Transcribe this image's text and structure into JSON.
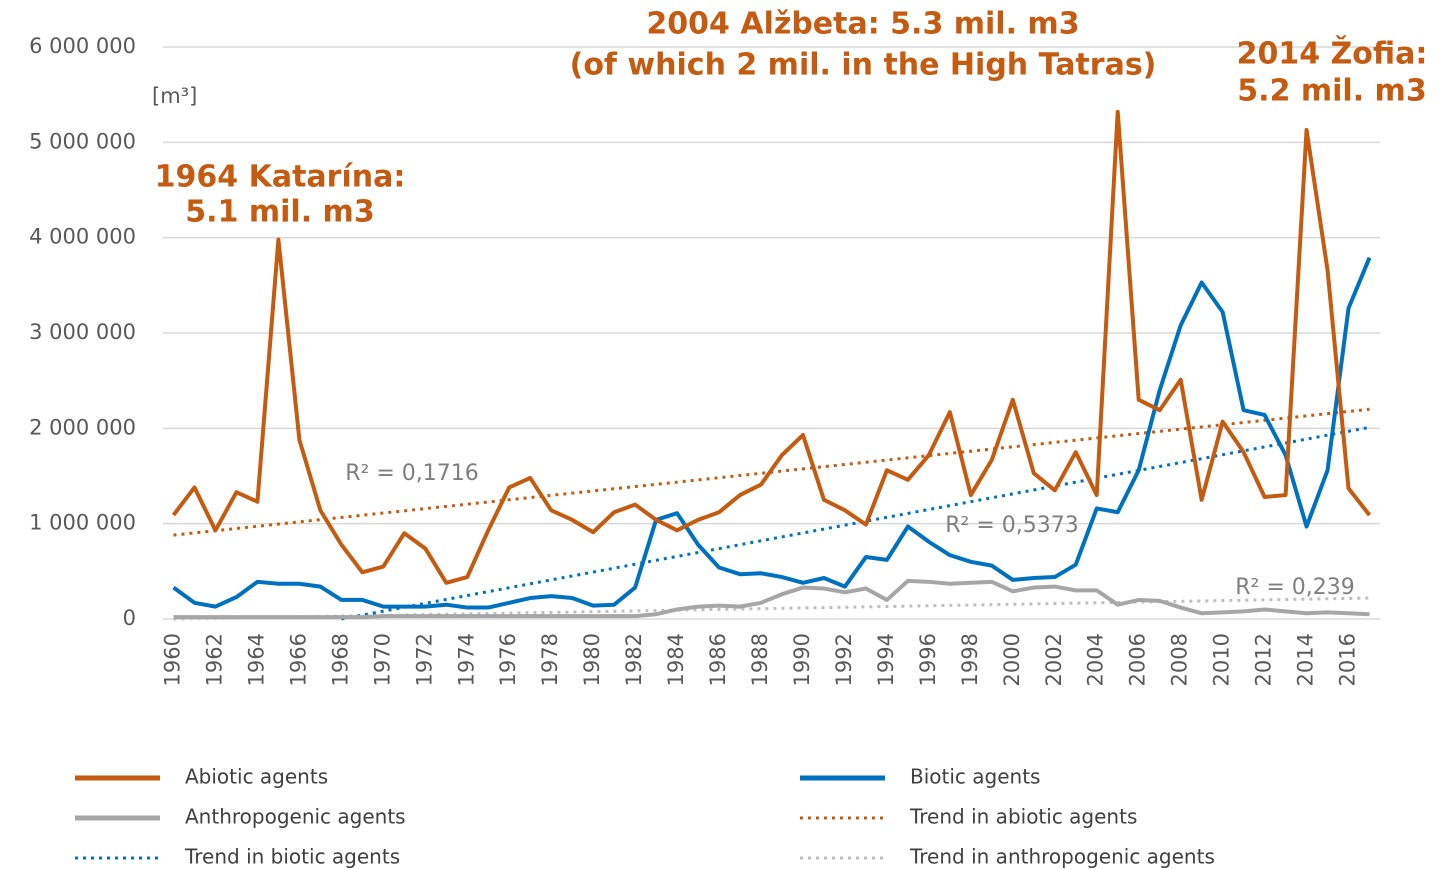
{
  "chart_data": {
    "type": "line",
    "unit_label": "[m³]",
    "annotations": [
      {
        "lines": [
          "1964 Katarína:",
          "5.1 mil. m3"
        ]
      },
      {
        "lines": [
          "2004 Alžbeta: 5.3 mil. m3",
          "(of which 2 mil. in the High Tatras)"
        ]
      },
      {
        "lines": [
          "2014 Žofia:",
          "5.2 mil. m3"
        ]
      }
    ],
    "r2_labels": [
      "R² = 0,1716",
      "R² = 0,5373",
      "R² = 0,239"
    ],
    "x": [
      1960,
      1961,
      1962,
      1963,
      1964,
      1965,
      1966,
      1967,
      1968,
      1969,
      1970,
      1971,
      1972,
      1973,
      1974,
      1975,
      1976,
      1977,
      1978,
      1979,
      1980,
      1981,
      1982,
      1983,
      1984,
      1985,
      1986,
      1987,
      1988,
      1989,
      1990,
      1991,
      1992,
      1993,
      1994,
      1995,
      1996,
      1997,
      1998,
      1999,
      2000,
      2001,
      2002,
      2003,
      2004,
      2005,
      2006,
      2007,
      2008,
      2009,
      2010,
      2011,
      2012,
      2013,
      2014,
      2015,
      2016,
      2017
    ],
    "xlim": [
      1959.5,
      2017.5
    ],
    "xticks": [
      1960,
      1962,
      1964,
      1966,
      1968,
      1970,
      1972,
      1974,
      1976,
      1978,
      1980,
      1982,
      1984,
      1986,
      1988,
      1990,
      1992,
      1994,
      1996,
      1998,
      2000,
      2002,
      2004,
      2006,
      2008,
      2010,
      2012,
      2014,
      2016
    ],
    "ylim": [
      0,
      6000000
    ],
    "yticks": [
      0,
      {
        "value": 1000000,
        "label": "1 000 000"
      },
      {
        "value": 2000000,
        "label": "2 000 000"
      },
      {
        "value": 3000000,
        "label": "3 000 000"
      },
      {
        "value": 4000000,
        "label": "4 000 000"
      },
      {
        "value": 5000000,
        "label": "5 000 000"
      },
      {
        "value": 6000000,
        "label": "6 000 000"
      }
    ],
    "grid": true,
    "series": [
      {
        "name": "Abiotic agents",
        "color": "#c55a11",
        "style": "solid",
        "values": [
          1090000,
          1380000,
          930000,
          1330000,
          1230000,
          3980000,
          1880000,
          1140000,
          780000,
          490000,
          550000,
          900000,
          740000,
          380000,
          440000,
          930000,
          1380000,
          1480000,
          1140000,
          1040000,
          910000,
          1120000,
          1200000,
          1040000,
          930000,
          1040000,
          1120000,
          1300000,
          1410000,
          1720000,
          1930000,
          1250000,
          1140000,
          990000,
          1560000,
          1460000,
          1720000,
          2170000,
          1300000,
          1670000,
          2300000,
          1530000,
          1350000,
          1750000,
          1300000,
          5320000,
          2300000,
          2190000,
          2510000,
          1250000,
          2070000,
          1750000,
          1280000,
          1300000,
          5130000,
          3660000,
          1370000,
          1090000
        ]
      },
      {
        "name": "Biotic agents",
        "color": "#0070c0",
        "style": "solid",
        "values": [
          330000,
          170000,
          130000,
          230000,
          390000,
          370000,
          370000,
          340000,
          200000,
          200000,
          130000,
          130000,
          130000,
          150000,
          120000,
          120000,
          170000,
          220000,
          240000,
          220000,
          140000,
          150000,
          330000,
          1040000,
          1110000,
          780000,
          540000,
          470000,
          480000,
          440000,
          380000,
          430000,
          340000,
          650000,
          620000,
          970000,
          810000,
          670000,
          600000,
          560000,
          410000,
          430000,
          440000,
          570000,
          1160000,
          1120000,
          1560000,
          2400000,
          3080000,
          3530000,
          3220000,
          2190000,
          2140000,
          1720000,
          970000,
          1560000,
          3260000,
          3790000
        ]
      },
      {
        "name": "Anthropogenic agents",
        "color": "#a6a6a6",
        "style": "solid",
        "values": [
          20000,
          20000,
          20000,
          20000,
          20000,
          20000,
          20000,
          20000,
          20000,
          20000,
          30000,
          30000,
          30000,
          30000,
          30000,
          30000,
          30000,
          30000,
          30000,
          30000,
          30000,
          30000,
          30000,
          50000,
          100000,
          130000,
          140000,
          130000,
          170000,
          260000,
          330000,
          320000,
          280000,
          320000,
          200000,
          400000,
          390000,
          370000,
          380000,
          390000,
          290000,
          330000,
          340000,
          300000,
          300000,
          150000,
          200000,
          190000,
          120000,
          60000,
          70000,
          80000,
          100000,
          80000,
          60000,
          70000,
          60000,
          50000
        ]
      },
      {
        "name": "Trend in abiotic agents",
        "color": "#c55a11",
        "style": "dotted",
        "x": [
          1960,
          2017
        ],
        "values": [
          880000,
          2200000
        ]
      },
      {
        "name": "Trend in biotic agents",
        "color": "#0070c0",
        "style": "dotted",
        "x": [
          1968,
          2017
        ],
        "values": [
          0,
          2010000
        ]
      },
      {
        "name": "Trend in anthropogenic agents",
        "color": "#bfbfbf",
        "style": "dotted",
        "x": [
          1960,
          2017
        ],
        "values": [
          0,
          220000
        ]
      }
    ]
  }
}
